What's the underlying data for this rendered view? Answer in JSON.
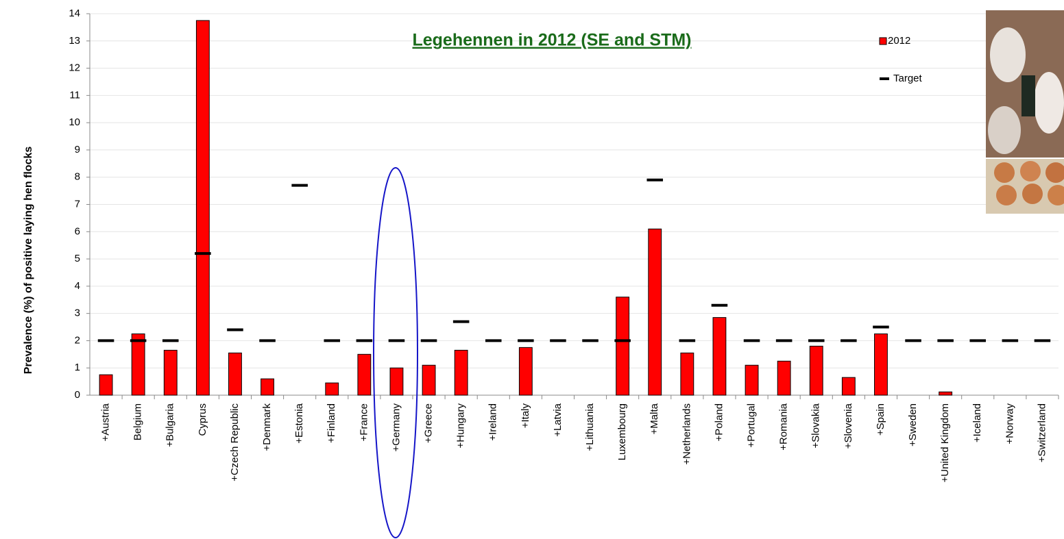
{
  "chart_data": {
    "type": "bar",
    "title": "Legehennen in 2012 (SE and STM)",
    "y_label": "Prevalence (%) of positive laying hen flocks",
    "categories": [
      "+Austria",
      "Belgium",
      "+Bulgaria",
      "Cyprus",
      "+Czech Republic",
      "+Denmark",
      "+Estonia",
      "+Finland",
      "+France",
      "+Germany",
      "+Greece",
      "+Hungary",
      "+Ireland",
      "+Italy",
      "+Latvia",
      "+Lithuania",
      "Luxembourg",
      "+Malta",
      "+Netherlands",
      "+Poland",
      "+Portugal",
      "+Romania",
      "+Slovakia",
      "+Slovenia",
      "+Spain",
      "+Sweden",
      "+United Kingdom",
      "+Iceland",
      "+Norway",
      "+Switzerland"
    ],
    "series": [
      {
        "name": "2012",
        "color": "#ff0000",
        "style": "bar",
        "values": [
          0.75,
          2.25,
          1.65,
          13.75,
          1.55,
          0.6,
          0,
          0.45,
          1.5,
          1.0,
          1.1,
          1.65,
          0,
          1.75,
          0,
          0,
          3.6,
          6.1,
          1.55,
          2.85,
          1.1,
          1.25,
          1.8,
          0.65,
          2.25,
          0,
          0.12,
          0,
          0,
          0
        ]
      },
      {
        "name": "Target",
        "color": "#000000",
        "style": "dash",
        "values": [
          2,
          2,
          2,
          5.2,
          2.4,
          2,
          7.7,
          2,
          2,
          2,
          2,
          2.7,
          2,
          2,
          2,
          2,
          2,
          7.9,
          2,
          3.3,
          2,
          2,
          2,
          2,
          2.5,
          2,
          2,
          2,
          2,
          2
        ]
      }
    ],
    "ylim": [
      0,
      14
    ],
    "yticks": [
      0,
      1,
      2,
      3,
      4,
      5,
      6,
      7,
      8,
      9,
      10,
      11,
      12,
      13,
      14
    ],
    "grid": true,
    "legend": "top-right"
  }
}
